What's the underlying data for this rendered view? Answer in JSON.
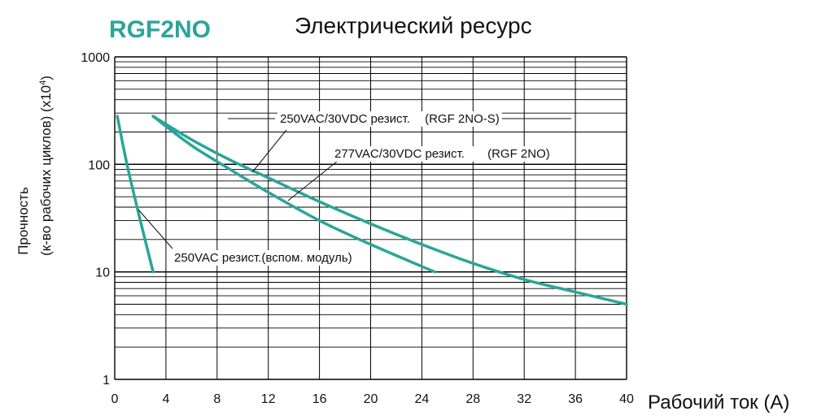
{
  "header": {
    "model": "RGF2NO",
    "title": "Электрический ресурс"
  },
  "colors": {
    "accent": "#2aa59a",
    "curve": "#2aa59a",
    "grid": "#000000",
    "text": "#111111"
  },
  "chart_data": {
    "type": "line",
    "title": "Электрический ресурс",
    "xlabel": "Рабочий ток (А)",
    "ylabel_line1": "Прочность",
    "ylabel_line2": "(к-во рабочих циклов) (x10",
    "ylabel_exp": "4",
    "ylabel_close": ")",
    "xlim": [
      0,
      40
    ],
    "ylim": [
      1,
      1000
    ],
    "yscale": "log",
    "grid": true,
    "x_ticks": [
      0,
      4,
      8,
      12,
      16,
      20,
      24,
      28,
      32,
      36,
      40
    ],
    "y_ticks": [
      1,
      10,
      100,
      1000
    ],
    "series": [
      {
        "name": "250VAC/30VDC резист. (RGF 2NO-S)",
        "x": [
          3,
          6,
          9,
          12,
          16,
          20,
          24,
          28,
          32,
          36,
          40
        ],
        "y": [
          280,
          170,
          110,
          75,
          45,
          28,
          18,
          12,
          8.5,
          6.5,
          5
        ]
      },
      {
        "name": "277VAC/30VDC резист. (RGF 2NO)",
        "x": [
          3,
          6,
          9,
          12,
          16,
          20,
          25
        ],
        "y": [
          280,
          150,
          90,
          55,
          30,
          18,
          10
        ]
      },
      {
        "name": "250VAC резист.(вспом. модуль)",
        "x": [
          0.2,
          1,
          2,
          3
        ],
        "y": [
          280,
          95,
          30,
          10
        ]
      }
    ],
    "annotations": [
      {
        "text": "250VAC/30VDC резист.",
        "suffix": "(RGF 2NO-S)"
      },
      {
        "text": "277VAC/30VDC резист.",
        "suffix": "(RGF 2NO)"
      },
      {
        "text": "250VAC резист.(вспом. модуль)"
      }
    ]
  }
}
